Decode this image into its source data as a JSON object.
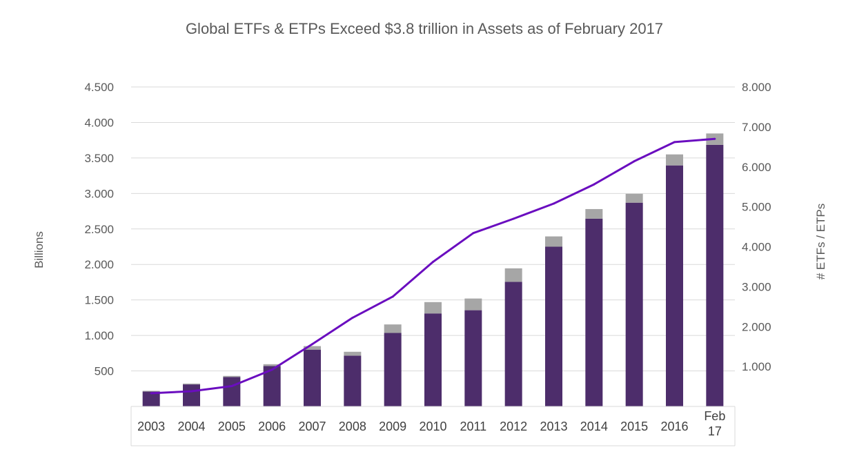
{
  "chart_data": {
    "type": "bar",
    "title": "Global ETFs & ETPs Exceed $3.8 trillion in Assets as of February 2017",
    "ylabel": "Billions",
    "y2label": "# ETFs / ETPs",
    "ylim": [
      0,
      4500
    ],
    "y2lim": [
      0,
      8000
    ],
    "yticks": [
      "500",
      "1.000",
      "1.500",
      "2.000",
      "2.500",
      "3.000",
      "3.500",
      "4.000",
      "4.500"
    ],
    "y2ticks": [
      "1.000",
      "2.000",
      "3.000",
      "4.000",
      "5.000",
      "6.000",
      "7.000",
      "8.000"
    ],
    "categories": [
      "2003",
      "2004",
      "2005",
      "2006",
      "2007",
      "2008",
      "2009",
      "2010",
      "2011",
      "2012",
      "2013",
      "2014",
      "2015",
      "2016",
      "Feb 17"
    ],
    "grid": true,
    "legend": "none",
    "series": [
      {
        "type": "bar-stacked",
        "color": "#4d2d6b",
        "values": [
          210,
          310,
          415,
          570,
          800,
          715,
          1035,
          1310,
          1355,
          1755,
          2250,
          2645,
          2870,
          3395,
          3685
        ]
      },
      {
        "type": "bar-stacked",
        "color": "#a6a6a6",
        "values": [
          10,
          12,
          15,
          25,
          50,
          55,
          120,
          160,
          165,
          190,
          145,
          135,
          125,
          155,
          160
        ]
      },
      {
        "type": "line",
        "axis": "right",
        "color": "#6a0dbf",
        "values": [
          330,
          380,
          510,
          920,
          1560,
          2220,
          2750,
          3620,
          4340,
          4700,
          5080,
          5560,
          6140,
          6620,
          6700
        ]
      }
    ]
  }
}
